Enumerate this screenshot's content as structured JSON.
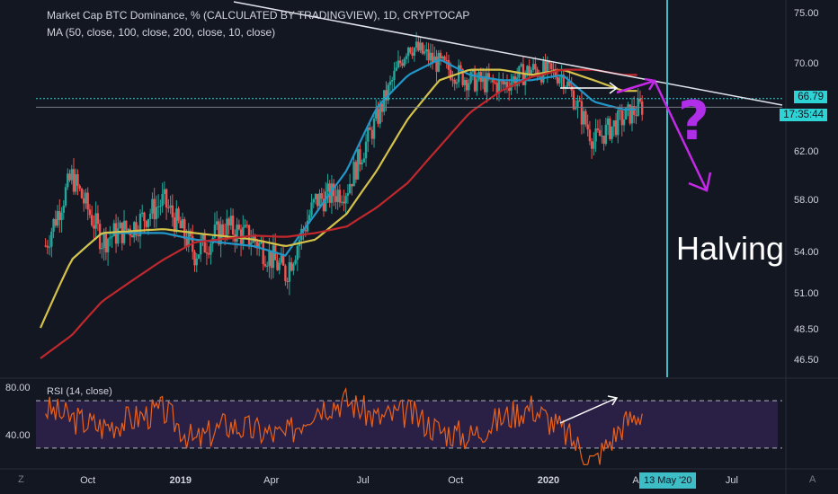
{
  "header": {
    "title": "Market Cap BTC Dominance, % (CALCULATED BY TRADINGVIEW), 1D, CRYPTOCAP",
    "ma_label": "MA (50, close, 100, close, 200, close, 10, close)",
    "rsi_label": "RSI (14, close)"
  },
  "price_badge": "66.79",
  "time_badge": "17:35:44",
  "halving_label": "Halving",
  "question_mark": "?",
  "date_badge": "13 May '20",
  "corner_left": "Z",
  "corner_right": "A",
  "colors": {
    "background": "#131722",
    "candle_up": "#26a69a",
    "candle_down": "#ef5350",
    "ma50": "#2196c9",
    "ma100": "#d4c24a",
    "ma200": "#c0282d",
    "rsi_line": "#e8621c",
    "rsi_band": "#2a1f45",
    "annotation_purple": "#c42ae6",
    "vertical_line": "#3dbdc5"
  },
  "chart_data": [
    {
      "type": "line",
      "title": "Market Cap BTC Dominance, % (CALCULATED BY TRADINGVIEW), 1D, CRYPTOCAP",
      "y_ticks": [
        "75.00",
        "70.00",
        "66.79",
        "62.00",
        "58.00",
        "54.00",
        "51.00",
        "48.50",
        "46.50"
      ],
      "x_ticks": [
        "Oct",
        "2019",
        "Apr",
        "Jul",
        "Oct",
        "2020",
        "Apr",
        "Jul"
      ],
      "ylim": [
        45.5,
        76.5
      ],
      "y_scale": "log",
      "last_price": 66.79,
      "series": [
        {
          "name": "MA 50",
          "x": [
            "2018-09",
            "2018-10",
            "2018-12",
            "2019-01",
            "2019-03",
            "2019-04",
            "2019-05",
            "2019-06",
            "2019-07",
            "2019-08",
            "2019-09",
            "2019-10",
            "2019-11",
            "2019-12",
            "2020-01",
            "2020-02",
            "2020-03"
          ],
          "values": [
            53.5,
            55.5,
            55.5,
            55.0,
            54.5,
            53.8,
            57.0,
            60.5,
            66.0,
            69.0,
            70.5,
            69.0,
            68.5,
            68.5,
            69.0,
            66.5,
            65.8
          ]
        },
        {
          "name": "MA 100",
          "x": [
            "2018-08",
            "2018-09",
            "2018-10",
            "2018-12",
            "2019-01",
            "2019-03",
            "2019-04",
            "2019-05",
            "2019-06",
            "2019-07",
            "2019-08",
            "2019-09",
            "2019-10",
            "2019-11",
            "2019-12",
            "2020-01",
            "2020-02",
            "2020-03"
          ],
          "values": [
            48.7,
            53.5,
            55.5,
            55.8,
            55.5,
            55.0,
            54.5,
            55.0,
            57.0,
            60.5,
            65.0,
            68.5,
            69.5,
            69.5,
            69.0,
            69.5,
            68.5,
            67.5
          ]
        },
        {
          "name": "MA 200",
          "x": [
            "2018-08",
            "2018-09",
            "2018-10",
            "2018-12",
            "2019-01",
            "2019-03",
            "2019-04",
            "2019-05",
            "2019-06",
            "2019-07",
            "2019-08",
            "2019-09",
            "2019-10",
            "2019-11",
            "2019-12",
            "2020-01",
            "2020-02",
            "2020-03"
          ],
          "values": [
            46.7,
            48.2,
            50.5,
            53.5,
            54.8,
            55.3,
            55.2,
            55.5,
            56.0,
            57.5,
            59.5,
            62.5,
            65.5,
            67.5,
            68.8,
            69.5,
            69.5,
            69.0
          ]
        },
        {
          "name": "Price",
          "x": [
            "2018-08",
            "2018-09",
            "2018-10",
            "2018-11",
            "2018-12",
            "2019-01",
            "2019-02",
            "2019-03",
            "2019-04",
            "2019-05",
            "2019-06",
            "2019-07",
            "2019-08",
            "2019-09",
            "2019-10",
            "2019-11",
            "2019-12",
            "2020-01",
            "2020-02",
            "2020-03",
            "2020-04"
          ],
          "values": [
            53.5,
            60.0,
            55.0,
            56.0,
            58.0,
            54.0,
            56.0,
            55.0,
            52.5,
            58.0,
            59.0,
            65.0,
            72.0,
            70.0,
            68.5,
            68.0,
            69.5,
            69.0,
            63.0,
            65.0,
            66.79
          ]
        }
      ]
    },
    {
      "type": "line",
      "title": "RSI (14, close)",
      "y_ticks": [
        "80.00",
        "40.00"
      ],
      "bands": [
        70,
        30
      ],
      "ylim": [
        14,
        86
      ],
      "series": [
        {
          "name": "RSI",
          "x": [
            "2018-08",
            "2018-09",
            "2018-10",
            "2018-11",
            "2018-12",
            "2019-01",
            "2019-02",
            "2019-03",
            "2019-04",
            "2019-05",
            "2019-06",
            "2019-07",
            "2019-08",
            "2019-09",
            "2019-10",
            "2019-11",
            "2019-12",
            "2020-01",
            "2020-02",
            "2020-03",
            "2020-04"
          ],
          "values": [
            65,
            55,
            48,
            55,
            62,
            35,
            50,
            45,
            40,
            65,
            70,
            55,
            60,
            45,
            40,
            55,
            65,
            45,
            18,
            50,
            68
          ]
        }
      ]
    }
  ]
}
